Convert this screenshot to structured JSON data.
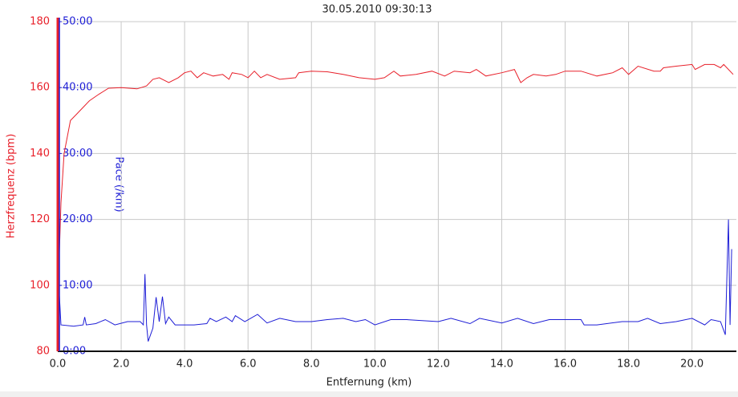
{
  "chart_data": {
    "type": "line",
    "title": "30.05.2010 09:30:13",
    "xlabel": "Entfernung (km)",
    "ylabel": "Herzfrequenz (bpm)",
    "y2label": "Pace (/km)",
    "xlim": [
      0,
      21.4
    ],
    "xticks": [
      {
        "value": 0,
        "label": "0.0"
      },
      {
        "value": 2,
        "label": "2.0"
      },
      {
        "value": 4,
        "label": "4.0"
      },
      {
        "value": 6,
        "label": "6.0"
      },
      {
        "value": 8,
        "label": "8.0"
      },
      {
        "value": 10,
        "label": "10.0"
      },
      {
        "value": 12,
        "label": "12.0"
      },
      {
        "value": 14,
        "label": "14.0"
      },
      {
        "value": 16,
        "label": "16.0"
      },
      {
        "value": 18,
        "label": "18.0"
      },
      {
        "value": 20,
        "label": "20.0"
      }
    ],
    "ylim": [
      80,
      180
    ],
    "yticks": [
      80,
      100,
      120,
      140,
      160,
      180
    ],
    "y2lim": [
      0,
      50
    ],
    "y2ticks": [
      {
        "value": 0,
        "label": "0:00"
      },
      {
        "value": 10,
        "label": "10:00"
      },
      {
        "value": 20,
        "label": "20:00"
      },
      {
        "value": 30,
        "label": "30:00"
      },
      {
        "value": 40,
        "label": "40:00"
      },
      {
        "value": 50,
        "label": "50:00"
      }
    ],
    "grid": true,
    "ycolor": "#e8202a",
    "y2color": "#1d1dd6",
    "series": [
      {
        "name": "Herzfrequenz",
        "color": "#e8202a",
        "x": [
          0.05,
          0.1,
          0.2,
          0.4,
          0.6,
          0.8,
          1.0,
          1.3,
          1.6,
          2.0,
          2.5,
          2.8,
          3.0,
          3.2,
          3.5,
          3.8,
          4.0,
          4.2,
          4.4,
          4.6,
          4.9,
          5.2,
          5.4,
          5.5,
          5.8,
          6.0,
          6.2,
          6.4,
          6.6,
          7.0,
          7.5,
          7.6,
          8.0,
          8.5,
          9.0,
          9.5,
          10.0,
          10.3,
          10.6,
          10.8,
          11.3,
          11.8,
          12.2,
          12.5,
          13.0,
          13.2,
          13.5,
          14.0,
          14.4,
          14.6,
          14.8,
          15.0,
          15.4,
          15.7,
          16.0,
          16.5,
          17.0,
          17.5,
          17.8,
          18.0,
          18.3,
          18.8,
          19.0,
          19.1,
          19.5,
          20.0,
          20.1,
          20.4,
          20.7,
          20.9,
          21.0,
          21.3
        ],
        "values": [
          110,
          125,
          140,
          150,
          152,
          154,
          156,
          158,
          159.8,
          160,
          159.6,
          160.5,
          162.5,
          163,
          161.5,
          163,
          164.5,
          165,
          163,
          164.5,
          163.5,
          164,
          162.5,
          164.5,
          164,
          163,
          165,
          163,
          164,
          162.5,
          163,
          164.5,
          165,
          164.8,
          164,
          163,
          162.5,
          163,
          165,
          163.5,
          164,
          165,
          163.5,
          165,
          164.5,
          165.5,
          163.5,
          164.5,
          165.5,
          161.5,
          163,
          164,
          163.5,
          164,
          165,
          165,
          163.5,
          164.5,
          166,
          164,
          166.5,
          165,
          165,
          166,
          166.5,
          167,
          165.5,
          167,
          167,
          166,
          167,
          164
        ]
      },
      {
        "name": "Pace",
        "color": "#1d1dd6",
        "axis": "y2",
        "x": [
          0.05,
          0.1,
          0.5,
          0.8,
          0.85,
          0.9,
          1.2,
          1.5,
          1.8,
          2.2,
          2.6,
          2.7,
          2.75,
          2.8,
          2.85,
          3.0,
          3.1,
          3.2,
          3.3,
          3.4,
          3.5,
          3.7,
          4.3,
          4.7,
          4.8,
          5.0,
          5.3,
          5.5,
          5.6,
          5.9,
          6.3,
          6.6,
          7.0,
          7.5,
          8.0,
          8.5,
          9.0,
          9.4,
          9.7,
          10.0,
          10.5,
          11.0,
          12.0,
          12.4,
          13.0,
          13.3,
          14.0,
          14.5,
          15.0,
          15.5,
          16.5,
          16.6,
          17.0,
          17.8,
          18.3,
          18.6,
          19.0,
          19.5,
          20.0,
          20.4,
          20.6,
          20.9,
          21.05,
          21.15,
          21.2,
          21.25
        ],
        "values": [
          8.5,
          4.0,
          3.8,
          4.0,
          5.2,
          4.0,
          4.2,
          4.8,
          4.0,
          4.5,
          4.5,
          4.0,
          11.7,
          4.0,
          1.5,
          3.5,
          8.2,
          4.5,
          8.3,
          4.2,
          5.2,
          4.0,
          4.0,
          4.2,
          5.0,
          4.5,
          5.2,
          4.5,
          5.4,
          4.5,
          5.6,
          4.3,
          5.0,
          4.5,
          4.5,
          4.8,
          5.0,
          4.5,
          4.8,
          4.0,
          4.8,
          4.8,
          4.5,
          5.0,
          4.2,
          5.0,
          4.3,
          5.0,
          4.2,
          4.8,
          4.8,
          4.0,
          4.0,
          4.5,
          4.5,
          5.0,
          4.2,
          4.5,
          5.0,
          4.0,
          4.8,
          4.5,
          2.5,
          20.0,
          4.0,
          15.5
        ]
      }
    ]
  }
}
